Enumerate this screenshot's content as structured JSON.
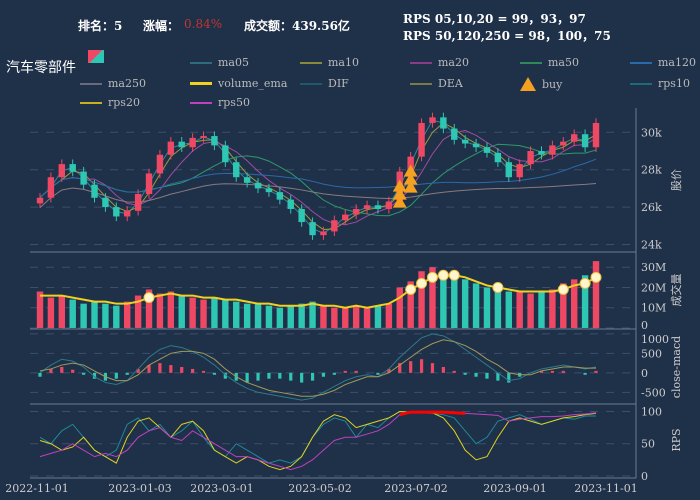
{
  "header": {
    "rank_label": "排名：5",
    "change_label": "涨幅：",
    "change_value": "0.84%",
    "amount_label": "成交额：439.56亿",
    "rps_line1": "RPS 05,10,20 = 99，93，97",
    "rps_line2": "RPS 50,120,250 = 98，100，75",
    "title": "汽车零部件"
  },
  "colors": {
    "up": "#ef4864",
    "down": "#2ec7b3",
    "bg": "#1f3049",
    "change": "#c23531"
  },
  "legend": [
    {
      "label": "ma05",
      "color": "#2f6b7a"
    },
    {
      "label": "ma10",
      "color": "#8a8a3a"
    },
    {
      "label": "ma20",
      "color": "#8a3c8a"
    },
    {
      "label": "ma50",
      "color": "#2e8a5a"
    },
    {
      "label": "ma120",
      "color": "#2a6aa8"
    },
    {
      "label": "ma250",
      "color": "#6a6a7a"
    },
    {
      "label": "volume_ema",
      "color": "#f0d020"
    },
    {
      "label": "DIF",
      "color": "#1d5a6a"
    },
    {
      "label": "DEA",
      "color": "#7a7a4a"
    },
    {
      "label": "buy",
      "color": "#f5a020"
    },
    {
      "label": "rps10",
      "color": "#1d6a7a"
    },
    {
      "label": "rps20",
      "color": "#c8b020"
    },
    {
      "label": "rps50",
      "color": "#c040c0"
    }
  ],
  "chart_data": {
    "type": "candlestick",
    "x_ticks": [
      "2022-11-01",
      "2023-01-03",
      "2023-03-01",
      "2023-05-02",
      "2023-07-02",
      "2023-09-01",
      "2023-11-01"
    ],
    "price_axis": {
      "label": "股价",
      "ticks": [
        "30k",
        "28k",
        "26k",
        "24k"
      ],
      "range": [
        23600,
        31300
      ]
    },
    "volume_axis": {
      "label": "成交量",
      "ticks": [
        "30M",
        "20M",
        "10M",
        "0"
      ],
      "range": [
        0,
        37
      ]
    },
    "macd_axis": {
      "label": "close-macd",
      "ticks": [
        "1000",
        "500",
        "0",
        "-500"
      ],
      "range": [
        -800,
        1100
      ]
    },
    "rps_axis": {
      "label": "RPS",
      "ticks": [
        "100",
        "50",
        "0"
      ],
      "range": [
        0,
        110
      ]
    },
    "close": [
      26500,
      27600,
      28300,
      27900,
      27200,
      26500,
      26000,
      25500,
      25800,
      26700,
      27800,
      28800,
      29500,
      29200,
      29700,
      29800,
      29300,
      28400,
      27600,
      27300,
      27000,
      26800,
      26400,
      25900,
      25200,
      24500,
      24700,
      25300,
      25600,
      25900,
      26100,
      25900,
      26300,
      27900,
      28700,
      30500,
      30800,
      30200,
      29600,
      29400,
      29200,
      28900,
      28400,
      27600,
      28300,
      29000,
      28800,
      29300,
      29500,
      29900,
      29200,
      30500
    ],
    "volume_M": [
      18,
      15,
      16,
      14,
      12,
      13,
      12,
      11,
      13,
      16,
      19,
      17,
      18,
      16,
      15,
      14,
      15,
      14,
      13,
      12,
      12,
      11,
      10,
      11,
      12,
      13,
      11,
      10,
      10,
      11,
      10,
      11,
      12,
      20,
      23,
      28,
      30,
      27,
      26,
      24,
      22,
      20,
      19,
      18,
      18,
      17,
      18,
      19,
      22,
      24,
      26,
      33
    ],
    "volume_ema_M": [
      16,
      16,
      16,
      15,
      14,
      13,
      13,
      12,
      12,
      13,
      15,
      16,
      17,
      16,
      16,
      15,
      15,
      14,
      14,
      13,
      12,
      12,
      11,
      11,
      11,
      12,
      11,
      11,
      10,
      11,
      10,
      11,
      12,
      15,
      19,
      22,
      25,
      26,
      26,
      25,
      23,
      21,
      20,
      19,
      18,
      18,
      18,
      18,
      19,
      21,
      22,
      25
    ],
    "macd_hist": [
      -100,
      100,
      150,
      80,
      -50,
      -150,
      -200,
      -150,
      -50,
      100,
      200,
      250,
      200,
      150,
      100,
      50,
      -50,
      -150,
      -200,
      -250,
      -200,
      -150,
      -150,
      -200,
      -250,
      -200,
      -100,
      -50,
      50,
      50,
      0,
      -50,
      100,
      250,
      300,
      350,
      250,
      150,
      50,
      -50,
      -100,
      -150,
      -200,
      -250,
      -100,
      0,
      50,
      50,
      50,
      0,
      -50,
      50
    ],
    "dif": [
      0,
      200,
      350,
      300,
      150,
      -100,
      -250,
      -300,
      -200,
      100,
      400,
      600,
      700,
      650,
      550,
      400,
      200,
      -50,
      -250,
      -400,
      -500,
      -550,
      -600,
      -650,
      -700,
      -650,
      -500,
      -350,
      -200,
      -100,
      -50,
      -100,
      100,
      400,
      650,
      900,
      1000,
      950,
      800,
      600,
      400,
      200,
      0,
      -200,
      -150,
      0,
      100,
      150,
      200,
      150,
      100,
      150
    ],
    "dea": [
      50,
      100,
      200,
      250,
      200,
      50,
      -100,
      -200,
      -200,
      -50,
      200,
      350,
      500,
      550,
      550,
      500,
      350,
      100,
      -100,
      -250,
      -350,
      -450,
      -500,
      -550,
      -600,
      -600,
      -550,
      -450,
      -300,
      -200,
      -100,
      -100,
      0,
      200,
      400,
      600,
      750,
      850,
      800,
      700,
      550,
      350,
      200,
      0,
      -50,
      -50,
      50,
      100,
      150,
      150,
      120,
      120
    ],
    "rps10": [
      60,
      50,
      70,
      80,
      60,
      40,
      30,
      40,
      80,
      90,
      70,
      80,
      60,
      70,
      85,
      60,
      40,
      30,
      50,
      40,
      30,
      20,
      25,
      20,
      30,
      60,
      80,
      90,
      85,
      60,
      80,
      75,
      90,
      100,
      99,
      98,
      97,
      95,
      90,
      70,
      50,
      60,
      85,
      90,
      95,
      88,
      80,
      85,
      90,
      88,
      93,
      93
    ],
    "rps20": [
      55,
      50,
      40,
      45,
      60,
      40,
      30,
      20,
      60,
      85,
      90,
      75,
      60,
      80,
      85,
      70,
      40,
      30,
      20,
      30,
      25,
      15,
      10,
      15,
      30,
      60,
      85,
      95,
      90,
      75,
      80,
      85,
      90,
      100,
      99,
      99,
      98,
      90,
      70,
      40,
      25,
      30,
      60,
      85,
      90,
      85,
      80,
      85,
      90,
      92,
      95,
      97
    ],
    "rps50": [
      30,
      35,
      40,
      50,
      40,
      30,
      35,
      30,
      40,
      60,
      70,
      75,
      60,
      55,
      70,
      60,
      50,
      40,
      30,
      30,
      25,
      20,
      15,
      10,
      15,
      25,
      40,
      55,
      60,
      60,
      65,
      70,
      80,
      95,
      99,
      99,
      99,
      99,
      98,
      97,
      96,
      95,
      94,
      85,
      88,
      90,
      92,
      92,
      93,
      95,
      96,
      98
    ],
    "buy_signals": [
      33,
      34
    ],
    "volume_ema_markers": [
      10,
      34,
      35,
      36,
      37,
      38,
      42,
      48,
      50,
      51
    ]
  }
}
